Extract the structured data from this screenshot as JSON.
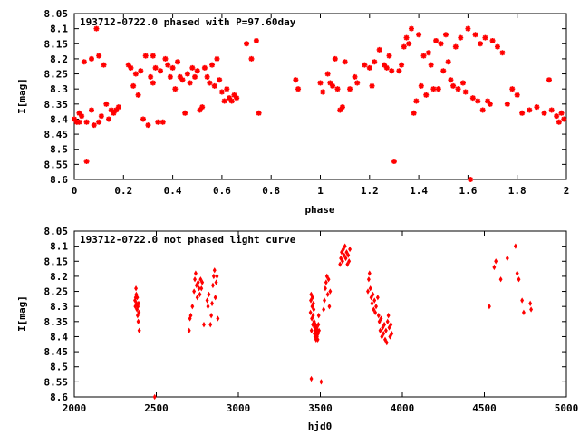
{
  "chart_data": [
    {
      "type": "scatter",
      "title": "193712-0722.0 phased with P=97.60day",
      "xlabel": "phase",
      "ylabel": "I[mag]",
      "xlim": [
        0,
        2
      ],
      "ylim": [
        8.05,
        8.6
      ],
      "y_inverted": true,
      "xticks": [
        0,
        0.2,
        0.4,
        0.6,
        0.8,
        1,
        1.2,
        1.4,
        1.6,
        1.8,
        2
      ],
      "xtick_labels": [
        "0",
        "0.2",
        "0.4",
        "0.6",
        "0.8",
        "1",
        "1.2",
        "1.4",
        "1.6",
        "1.8",
        "2"
      ],
      "yticks": [
        8.05,
        8.1,
        8.15,
        8.2,
        8.25,
        8.3,
        8.35,
        8.4,
        8.45,
        8.5,
        8.55,
        8.6
      ],
      "ytick_labels": [
        "8.05",
        "8.1",
        "8.15",
        "8.2",
        "8.25",
        "8.3",
        "8.35",
        "8.4",
        "8.45",
        "8.5",
        "8.55",
        "8.6"
      ],
      "grid": false,
      "marker_color": "#ff0000",
      "marker": "star",
      "points": [
        [
          0.0,
          8.4
        ],
        [
          0.01,
          8.41
        ],
        [
          0.02,
          8.38
        ],
        [
          0.02,
          8.41
        ],
        [
          0.03,
          8.39
        ],
        [
          0.04,
          8.21
        ],
        [
          0.05,
          8.41
        ],
        [
          0.05,
          8.54
        ],
        [
          0.07,
          8.2
        ],
        [
          0.07,
          8.37
        ],
        [
          0.08,
          8.42
        ],
        [
          0.09,
          8.1
        ],
        [
          0.1,
          8.41
        ],
        [
          0.1,
          8.19
        ],
        [
          0.11,
          8.39
        ],
        [
          0.12,
          8.22
        ],
        [
          0.13,
          8.35
        ],
        [
          0.14,
          8.4
        ],
        [
          0.15,
          8.37
        ],
        [
          0.16,
          8.38
        ],
        [
          0.17,
          8.37
        ],
        [
          0.18,
          8.36
        ],
        [
          0.22,
          8.22
        ],
        [
          0.23,
          8.23
        ],
        [
          0.24,
          8.29
        ],
        [
          0.25,
          8.25
        ],
        [
          0.26,
          8.32
        ],
        [
          0.27,
          8.24
        ],
        [
          0.28,
          8.4
        ],
        [
          0.29,
          8.19
        ],
        [
          0.3,
          8.42
        ],
        [
          0.31,
          8.26
        ],
        [
          0.32,
          8.19
        ],
        [
          0.32,
          8.28
        ],
        [
          0.33,
          8.23
        ],
        [
          0.34,
          8.41
        ],
        [
          0.35,
          8.24
        ],
        [
          0.36,
          8.41
        ],
        [
          0.37,
          8.2
        ],
        [
          0.38,
          8.22
        ],
        [
          0.39,
          8.26
        ],
        [
          0.4,
          8.23
        ],
        [
          0.41,
          8.3
        ],
        [
          0.42,
          8.21
        ],
        [
          0.43,
          8.26
        ],
        [
          0.44,
          8.27
        ],
        [
          0.45,
          8.38
        ],
        [
          0.46,
          8.25
        ],
        [
          0.47,
          8.28
        ],
        [
          0.48,
          8.23
        ],
        [
          0.49,
          8.26
        ],
        [
          0.5,
          8.24
        ],
        [
          0.51,
          8.37
        ],
        [
          0.52,
          8.36
        ],
        [
          0.53,
          8.23
        ],
        [
          0.54,
          8.26
        ],
        [
          0.55,
          8.28
        ],
        [
          0.56,
          8.22
        ],
        [
          0.57,
          8.29
        ],
        [
          0.58,
          8.2
        ],
        [
          0.59,
          8.27
        ],
        [
          0.6,
          8.31
        ],
        [
          0.61,
          8.34
        ],
        [
          0.62,
          8.3
        ],
        [
          0.63,
          8.33
        ],
        [
          0.64,
          8.34
        ],
        [
          0.65,
          8.32
        ],
        [
          0.66,
          8.33
        ],
        [
          0.7,
          8.15
        ],
        [
          0.72,
          8.2
        ],
        [
          0.74,
          8.14
        ],
        [
          0.75,
          8.38
        ],
        [
          0.9,
          8.27
        ],
        [
          0.91,
          8.3
        ],
        [
          1.0,
          8.28
        ],
        [
          1.01,
          8.31
        ],
        [
          1.03,
          8.25
        ],
        [
          1.04,
          8.28
        ],
        [
          1.05,
          8.29
        ],
        [
          1.06,
          8.2
        ],
        [
          1.07,
          8.3
        ],
        [
          1.08,
          8.37
        ],
        [
          1.09,
          8.36
        ],
        [
          1.1,
          8.21
        ],
        [
          1.12,
          8.3
        ],
        [
          1.14,
          8.26
        ],
        [
          1.15,
          8.28
        ],
        [
          1.18,
          8.22
        ],
        [
          1.2,
          8.23
        ],
        [
          1.21,
          8.29
        ],
        [
          1.22,
          8.21
        ],
        [
          1.24,
          8.17
        ],
        [
          1.26,
          8.22
        ],
        [
          1.27,
          8.23
        ],
        [
          1.28,
          8.19
        ],
        [
          1.29,
          8.24
        ],
        [
          1.3,
          8.54
        ],
        [
          1.32,
          8.24
        ],
        [
          1.33,
          8.22
        ],
        [
          1.34,
          8.16
        ],
        [
          1.35,
          8.13
        ],
        [
          1.36,
          8.15
        ],
        [
          1.37,
          8.1
        ],
        [
          1.38,
          8.38
        ],
        [
          1.39,
          8.34
        ],
        [
          1.4,
          8.12
        ],
        [
          1.41,
          8.29
        ],
        [
          1.42,
          8.19
        ],
        [
          1.43,
          8.32
        ],
        [
          1.44,
          8.18
        ],
        [
          1.45,
          8.22
        ],
        [
          1.46,
          8.3
        ],
        [
          1.47,
          8.14
        ],
        [
          1.48,
          8.3
        ],
        [
          1.49,
          8.15
        ],
        [
          1.5,
          8.24
        ],
        [
          1.51,
          8.12
        ],
        [
          1.52,
          8.21
        ],
        [
          1.53,
          8.27
        ],
        [
          1.54,
          8.29
        ],
        [
          1.55,
          8.16
        ],
        [
          1.56,
          8.3
        ],
        [
          1.57,
          8.13
        ],
        [
          1.58,
          8.28
        ],
        [
          1.59,
          8.31
        ],
        [
          1.6,
          8.1
        ],
        [
          1.61,
          8.6
        ],
        [
          1.62,
          8.33
        ],
        [
          1.63,
          8.12
        ],
        [
          1.64,
          8.34
        ],
        [
          1.65,
          8.15
        ],
        [
          1.66,
          8.37
        ],
        [
          1.67,
          8.13
        ],
        [
          1.68,
          8.34
        ],
        [
          1.69,
          8.35
        ],
        [
          1.7,
          8.14
        ],
        [
          1.72,
          8.16
        ],
        [
          1.74,
          8.18
        ],
        [
          1.76,
          8.35
        ],
        [
          1.78,
          8.3
        ],
        [
          1.8,
          8.32
        ],
        [
          1.82,
          8.38
        ],
        [
          1.85,
          8.37
        ],
        [
          1.88,
          8.36
        ],
        [
          1.91,
          8.38
        ],
        [
          1.93,
          8.27
        ],
        [
          1.94,
          8.37
        ],
        [
          1.96,
          8.39
        ],
        [
          1.97,
          8.41
        ],
        [
          1.98,
          8.38
        ],
        [
          1.99,
          8.4
        ]
      ]
    },
    {
      "type": "scatter",
      "title": "193712-0722.0 not phased light curve",
      "xlabel": "hjd0",
      "ylabel": "I[mag]",
      "xlim": [
        2000,
        5000
      ],
      "ylim": [
        8.05,
        8.6
      ],
      "y_inverted": true,
      "xticks": [
        2000,
        2500,
        3000,
        3500,
        4000,
        4500,
        5000
      ],
      "xtick_labels": [
        "2000",
        "2500",
        "3000",
        "3500",
        "4000",
        "4500",
        "5000"
      ],
      "yticks": [
        8.05,
        8.1,
        8.15,
        8.2,
        8.25,
        8.3,
        8.35,
        8.4,
        8.45,
        8.5,
        8.55,
        8.6
      ],
      "ytick_labels": [
        "8.05",
        "8.1",
        "8.15",
        "8.2",
        "8.25",
        "8.3",
        "8.35",
        "8.4",
        "8.45",
        "8.5",
        "8.55",
        "8.6"
      ],
      "grid": false,
      "marker_color": "#ff0000",
      "marker": "diamond",
      "points": [
        [
          2370,
          8.28
        ],
        [
          2372,
          8.3
        ],
        [
          2374,
          8.27
        ],
        [
          2376,
          8.24
        ],
        [
          2378,
          8.26
        ],
        [
          2380,
          8.29
        ],
        [
          2382,
          8.31
        ],
        [
          2384,
          8.27
        ],
        [
          2386,
          8.33
        ],
        [
          2388,
          8.3
        ],
        [
          2390,
          8.35
        ],
        [
          2392,
          8.29
        ],
        [
          2394,
          8.32
        ],
        [
          2396,
          8.38
        ],
        [
          2490,
          8.6
        ],
        [
          2700,
          8.38
        ],
        [
          2705,
          8.34
        ],
        [
          2710,
          8.33
        ],
        [
          2720,
          8.3
        ],
        [
          2730,
          8.25
        ],
        [
          2735,
          8.21
        ],
        [
          2740,
          8.19
        ],
        [
          2745,
          8.23
        ],
        [
          2750,
          8.27
        ],
        [
          2755,
          8.22
        ],
        [
          2760,
          8.24
        ],
        [
          2765,
          8.26
        ],
        [
          2770,
          8.21
        ],
        [
          2775,
          8.24
        ],
        [
          2780,
          8.22
        ],
        [
          2790,
          8.36
        ],
        [
          2810,
          8.28
        ],
        [
          2815,
          8.3
        ],
        [
          2820,
          8.26
        ],
        [
          2830,
          8.36
        ],
        [
          2835,
          8.33
        ],
        [
          2840,
          8.29
        ],
        [
          2845,
          8.23
        ],
        [
          2850,
          8.2
        ],
        [
          2855,
          8.18
        ],
        [
          2860,
          8.27
        ],
        [
          2865,
          8.22
        ],
        [
          2870,
          8.2
        ],
        [
          2875,
          8.34
        ],
        [
          3440,
          8.32
        ],
        [
          3442,
          8.28
        ],
        [
          3444,
          8.26
        ],
        [
          3446,
          8.38
        ],
        [
          3448,
          8.34
        ],
        [
          3450,
          8.3
        ],
        [
          3452,
          8.27
        ],
        [
          3454,
          8.36
        ],
        [
          3456,
          8.33
        ],
        [
          3458,
          8.29
        ],
        [
          3460,
          8.31
        ],
        [
          3462,
          8.35
        ],
        [
          3464,
          8.39
        ],
        [
          3466,
          8.37
        ],
        [
          3468,
          8.4
        ],
        [
          3470,
          8.36
        ],
        [
          3472,
          8.38
        ],
        [
          3474,
          8.41
        ],
        [
          3476,
          8.39
        ],
        [
          3478,
          8.37
        ],
        [
          3480,
          8.4
        ],
        [
          3482,
          8.38
        ],
        [
          3484,
          8.41
        ],
        [
          3486,
          8.39
        ],
        [
          3488,
          8.36
        ],
        [
          3490,
          8.33
        ],
        [
          3492,
          8.38
        ],
        [
          3445,
          8.54
        ],
        [
          3505,
          8.55
        ],
        [
          3520,
          8.31
        ],
        [
          3525,
          8.28
        ],
        [
          3530,
          8.24
        ],
        [
          3535,
          8.22
        ],
        [
          3540,
          8.2
        ],
        [
          3545,
          8.26
        ],
        [
          3550,
          8.21
        ],
        [
          3555,
          8.3
        ],
        [
          3560,
          8.25
        ],
        [
          3620,
          8.16
        ],
        [
          3625,
          8.14
        ],
        [
          3630,
          8.12
        ],
        [
          3635,
          8.15
        ],
        [
          3640,
          8.11
        ],
        [
          3645,
          8.13
        ],
        [
          3650,
          8.1
        ],
        [
          3655,
          8.14
        ],
        [
          3660,
          8.12
        ],
        [
          3665,
          8.16
        ],
        [
          3670,
          8.13
        ],
        [
          3675,
          8.15
        ],
        [
          3680,
          8.11
        ],
        [
          3790,
          8.25
        ],
        [
          3795,
          8.21
        ],
        [
          3800,
          8.19
        ],
        [
          3805,
          8.24
        ],
        [
          3810,
          8.27
        ],
        [
          3815,
          8.29
        ],
        [
          3820,
          8.26
        ],
        [
          3825,
          8.31
        ],
        [
          3830,
          8.28
        ],
        [
          3835,
          8.32
        ],
        [
          3840,
          8.3
        ],
        [
          3850,
          8.27
        ],
        [
          3855,
          8.33
        ],
        [
          3860,
          8.35
        ],
        [
          3865,
          8.38
        ],
        [
          3870,
          8.34
        ],
        [
          3875,
          8.4
        ],
        [
          3880,
          8.37
        ],
        [
          3885,
          8.39
        ],
        [
          3890,
          8.36
        ],
        [
          3895,
          8.41
        ],
        [
          3900,
          8.38
        ],
        [
          3905,
          8.42
        ],
        [
          3910,
          8.35
        ],
        [
          3915,
          8.33
        ],
        [
          3920,
          8.37
        ],
        [
          3925,
          8.4
        ],
        [
          3930,
          8.36
        ],
        [
          3935,
          8.39
        ],
        [
          4530,
          8.3
        ],
        [
          4560,
          8.17
        ],
        [
          4570,
          8.15
        ],
        [
          4600,
          8.21
        ],
        [
          4640,
          8.14
        ],
        [
          4690,
          8.1
        ],
        [
          4700,
          8.19
        ],
        [
          4710,
          8.21
        ],
        [
          4730,
          8.28
        ],
        [
          4740,
          8.32
        ],
        [
          4780,
          8.29
        ],
        [
          4785,
          8.31
        ]
      ]
    }
  ]
}
